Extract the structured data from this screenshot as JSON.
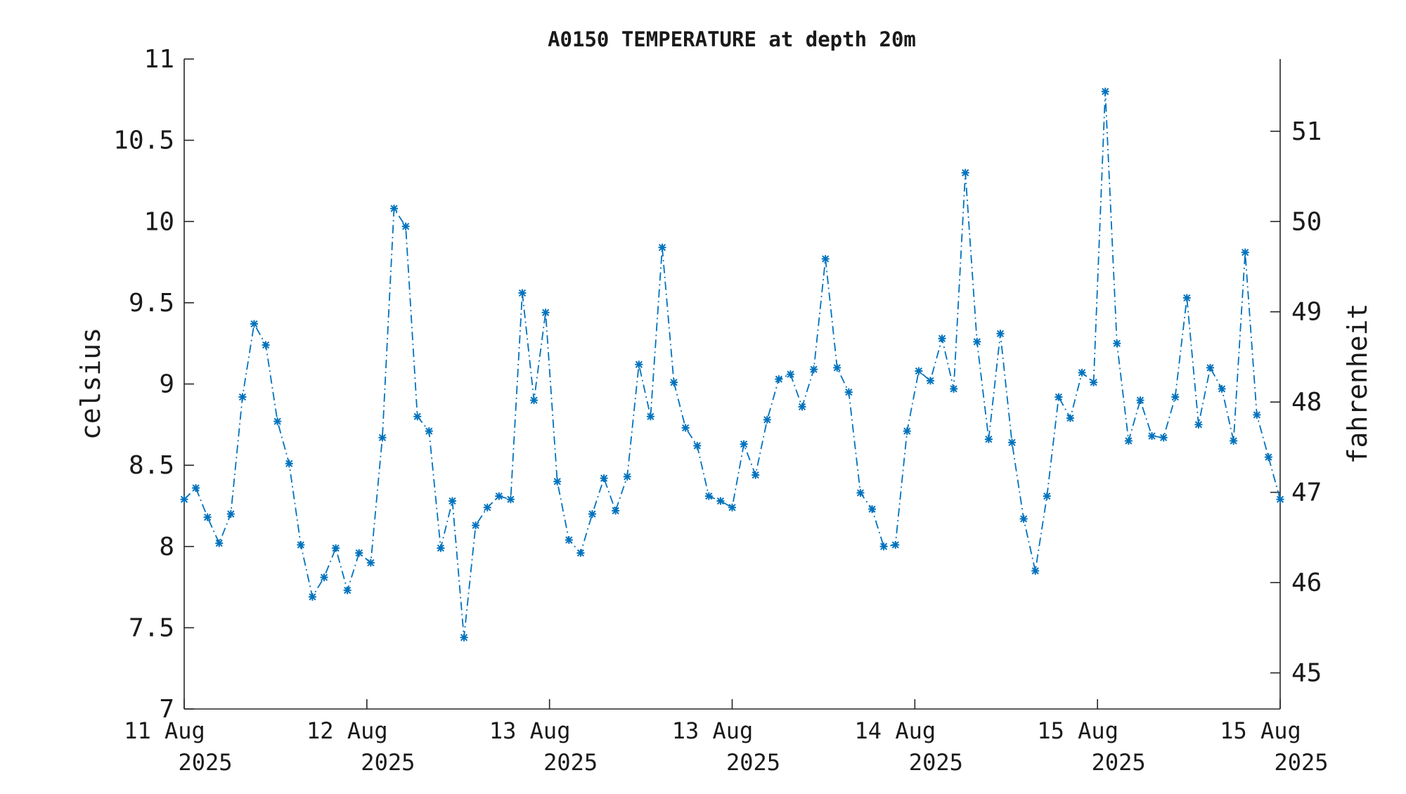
{
  "chart_data": {
    "type": "line",
    "title": "A0150 TEMPERATURE at depth 20m",
    "ylabel": "celsius",
    "y2label": "fahrenheit",
    "ylim": [
      7,
      11
    ],
    "y2lim": [
      44.6,
      51.8
    ],
    "yticks": [
      "7",
      "7.5",
      "8",
      "8.5",
      "9",
      "9.5",
      "10",
      "10.5",
      "11"
    ],
    "y2ticks": [
      "45",
      "46",
      "47",
      "48",
      "49",
      "50",
      "51"
    ],
    "xlim": [
      0,
      6
    ],
    "xticks": [
      {
        "day": "11 Aug",
        "year": "2025"
      },
      {
        "day": "12 Aug",
        "year": "2025"
      },
      {
        "day": "13 Aug",
        "year": "2025"
      },
      {
        "day": "13 Aug",
        "year": "2025"
      },
      {
        "day": "14 Aug",
        "year": "2025"
      },
      {
        "day": "15 Aug",
        "year": "2025"
      },
      {
        "day": "15 Aug",
        "year": "2025"
      }
    ],
    "grid": false,
    "marker": "asterisk",
    "line_style": "dash-dot",
    "color": "#0072bd",
    "series": [
      {
        "values": [
          8.29,
          8.36,
          8.18,
          8.02,
          8.2,
          8.92,
          9.37,
          9.24,
          8.77,
          8.51,
          8.01,
          7.69,
          7.81,
          7.99,
          7.73,
          7.96,
          7.9,
          8.67,
          10.08,
          9.97,
          8.8,
          8.71,
          7.99,
          8.28,
          7.44,
          8.13,
          8.24,
          8.31,
          8.29,
          9.56,
          8.9,
          9.44,
          8.4,
          8.04,
          7.96,
          8.2,
          8.42,
          8.22,
          8.43,
          9.12,
          8.8,
          9.84,
          9.01,
          8.73,
          8.62,
          8.31,
          8.28,
          8.24,
          8.63,
          8.44,
          8.78,
          9.03,
          9.06,
          8.86,
          9.09,
          9.77,
          9.1,
          8.95,
          8.33,
          8.23,
          8.0,
          8.01,
          8.71,
          9.08,
          9.02,
          9.28,
          8.97,
          10.3,
          9.26,
          8.66,
          9.31,
          8.64,
          8.17,
          7.85,
          8.31,
          8.92,
          8.79,
          9.07,
          9.01,
          10.8,
          9.25,
          8.65,
          8.9,
          8.68,
          8.67,
          8.92,
          9.53,
          8.75,
          9.1,
          8.97,
          8.65,
          9.81,
          8.81,
          8.55,
          8.29
        ]
      }
    ]
  }
}
